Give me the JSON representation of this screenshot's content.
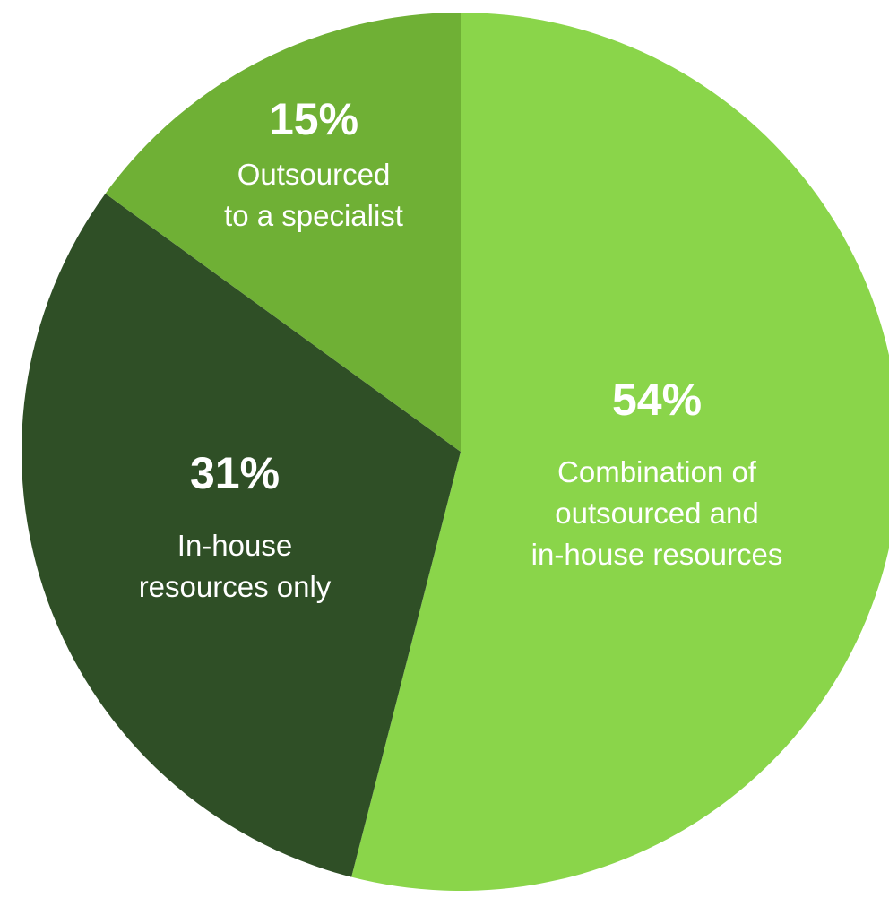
{
  "chart_data": {
    "type": "pie",
    "slices": [
      {
        "value": 54,
        "value_label": "54%",
        "label_lines": [
          "Combination of",
          "outsourced and",
          "in-house resources"
        ],
        "color": "#8ad54a"
      },
      {
        "value": 31,
        "value_label": "31%",
        "label_lines": [
          "In-house",
          "resources only"
        ],
        "color": "#2f4f26"
      },
      {
        "value": 15,
        "value_label": "15%",
        "label_lines": [
          "Outsourced",
          "to a specialist"
        ],
        "color": "#6fb035"
      }
    ]
  }
}
